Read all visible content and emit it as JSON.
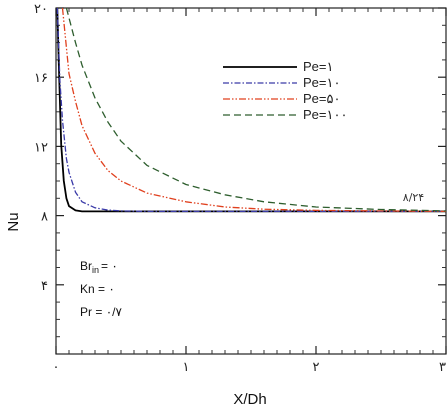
{
  "chart_data": {
    "type": "line",
    "xlabel": "X/Dh",
    "ylabel": "Nu",
    "xlim": [
      0,
      3
    ],
    "ylim": [
      0,
      20
    ],
    "x_ticks": [
      {
        "value": 0,
        "label": "۰"
      },
      {
        "value": 1,
        "label": "۱"
      },
      {
        "value": 2,
        "label": "۲"
      },
      {
        "value": 3,
        "label": "۳"
      }
    ],
    "y_ticks": [
      {
        "value": 4,
        "label": "۴"
      },
      {
        "value": 8,
        "label": "۸"
      },
      {
        "value": 12,
        "label": "۱۲"
      },
      {
        "value": 16,
        "label": "۱۶"
      },
      {
        "value": 20,
        "label": "۲۰"
      }
    ],
    "legend_position": "top-center",
    "series": [
      {
        "name": "Pe=۱",
        "color": "#000000",
        "dash": "solid",
        "x": [
          0.01,
          0.02,
          0.04,
          0.06,
          0.08,
          0.1,
          0.15,
          0.2,
          0.3,
          0.5,
          1,
          2,
          3
        ],
        "y": [
          20,
          17.2,
          12.1,
          10.0,
          9.0,
          8.55,
          8.3,
          8.24,
          8.24,
          8.24,
          8.24,
          8.24,
          8.24
        ]
      },
      {
        "name": "Pe=۱۰",
        "color": "#3a3aa8",
        "dash": "dashdot",
        "x": [
          0.01,
          0.03,
          0.05,
          0.08,
          0.1,
          0.15,
          0.2,
          0.3,
          0.4,
          0.5,
          0.7,
          1,
          2,
          3
        ],
        "y": [
          20,
          15.8,
          13.5,
          11.3,
          10.5,
          9.35,
          8.8,
          8.45,
          8.32,
          8.27,
          8.24,
          8.24,
          8.24,
          8.24
        ]
      },
      {
        "name": "Pe=۵۰",
        "color": "#e0401e",
        "dash": "dashdotdot",
        "x": [
          0.05,
          0.1,
          0.15,
          0.2,
          0.3,
          0.4,
          0.5,
          0.7,
          1.0,
          1.3,
          1.6,
          2.0,
          3.0
        ],
        "y": [
          20,
          16.2,
          14.6,
          13.2,
          11.6,
          10.6,
          10.0,
          9.3,
          8.8,
          8.5,
          8.37,
          8.3,
          8.24
        ]
      },
      {
        "name": "Pe=۱۰۰",
        "color": "#2e5e2e",
        "dash": "dashed",
        "x": [
          0.08,
          0.15,
          0.2,
          0.3,
          0.4,
          0.5,
          0.7,
          1.0,
          1.3,
          1.6,
          2.0,
          2.5,
          3.0
        ],
        "y": [
          20,
          18.0,
          16.7,
          14.8,
          13.4,
          12.3,
          10.9,
          9.8,
          9.2,
          8.8,
          8.5,
          8.35,
          8.27
        ]
      }
    ],
    "annotations": [
      {
        "text": "۸/۲۴",
        "x": 2.75,
        "y": 8.8
      }
    ],
    "parameters": [
      {
        "label": "Br",
        "sub": "in",
        "value": "= ۰"
      },
      {
        "label": "Kn = ",
        "sub": "",
        "value": "۰"
      },
      {
        "label": "Pr = ",
        "sub": "",
        "value": "۰/۷"
      }
    ]
  }
}
